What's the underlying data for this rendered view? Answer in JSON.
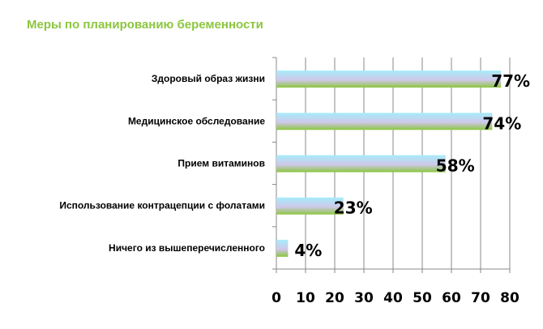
{
  "chart_data": {
    "type": "bar",
    "orientation": "horizontal",
    "title": "Меры по планированию беременности",
    "categories": [
      "Здоровый образ жизни",
      "Медицинское обследование",
      "Прием витаминов",
      "Использование контрацепции с фолатами",
      "Ничего из вышеперечисленного"
    ],
    "values": [
      77,
      74,
      58,
      23,
      4
    ],
    "data_labels": [
      "77%",
      "74%",
      "58%",
      "23%",
      "4%"
    ],
    "xlim": [
      0,
      80
    ],
    "xticks": [
      0,
      10,
      20,
      30,
      40,
      50,
      60,
      70,
      80
    ],
    "grid": true,
    "colors": {
      "bar_top": "#a6ecfa",
      "bar_mid": "#c9c9ec",
      "bar_bottom": "#8cc63f",
      "title": "#8cc63f",
      "grid": "#888888"
    }
  }
}
